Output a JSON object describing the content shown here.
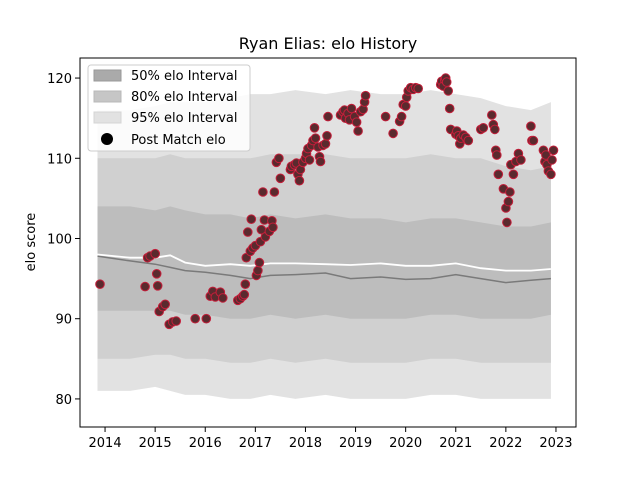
{
  "chart_data": {
    "type": "scatter",
    "title": "Ryan Elias: elo History",
    "xlabel": "",
    "ylabel": "elo score",
    "xlim": [
      2013.5,
      2023.4
    ],
    "ylim": [
      76.5,
      122.5
    ],
    "xticks": [
      2014,
      2015,
      2016,
      2017,
      2018,
      2019,
      2020,
      2021,
      2022,
      2023
    ],
    "yticks": [
      80,
      90,
      100,
      110,
      120
    ],
    "grid": false,
    "legend_position": "top-left",
    "legend": [
      {
        "label": "50% elo Interval",
        "color": "#aaaaaa"
      },
      {
        "label": "80% elo Interval",
        "color": "#c6c6c6"
      },
      {
        "label": "95% elo Interval",
        "color": "#e2e2e2"
      },
      {
        "label": "Post Match elo",
        "color": "#000000"
      }
    ],
    "bands": {
      "x": [
        2013.85,
        2014.5,
        2015.0,
        2015.3,
        2015.6,
        2016.0,
        2016.5,
        2016.9,
        2017.3,
        2017.8,
        2018.4,
        2018.9,
        2019.5,
        2020.0,
        2020.5,
        2021.0,
        2021.5,
        2022.0,
        2022.5,
        2022.9
      ],
      "p95_low": [
        81.0,
        81.0,
        81.5,
        81.0,
        80.5,
        80.5,
        80.0,
        80.0,
        80.5,
        80.0,
        80.5,
        80.0,
        80.0,
        80.0,
        80.5,
        80.5,
        80.0,
        80.0,
        80.0,
        80.0
      ],
      "p80_low": [
        85.0,
        85.0,
        85.5,
        85.5,
        85.0,
        85.0,
        84.5,
        84.5,
        85.0,
        84.5,
        85.0,
        84.5,
        84.5,
        84.5,
        85.0,
        85.0,
        84.5,
        84.5,
        84.5,
        84.5
      ],
      "p50_low": [
        91.0,
        91.0,
        91.0,
        91.0,
        90.5,
        90.5,
        90.0,
        90.0,
        90.5,
        90.0,
        90.5,
        90.0,
        90.0,
        90.0,
        90.5,
        90.5,
        90.0,
        90.0,
        90.0,
        90.5
      ],
      "median": [
        97.8,
        97.2,
        96.8,
        96.4,
        96.0,
        95.8,
        95.4,
        95.0,
        95.4,
        95.5,
        95.7,
        95.0,
        95.2,
        94.9,
        95.0,
        95.5,
        95.0,
        94.5,
        94.8,
        95.0
      ],
      "mean": [
        98.0,
        97.6,
        97.6,
        97.9,
        97.0,
        96.6,
        96.8,
        96.6,
        96.9,
        96.9,
        96.8,
        96.7,
        96.9,
        96.6,
        96.6,
        96.9,
        96.3,
        96.0,
        96.0,
        96.2
      ],
      "p50_high": [
        104.0,
        104.0,
        103.5,
        104.0,
        103.5,
        103.0,
        103.0,
        102.5,
        103.0,
        102.5,
        103.0,
        102.5,
        102.5,
        102.0,
        102.5,
        102.5,
        102.0,
        101.5,
        101.5,
        102.0
      ],
      "p80_high": [
        110.0,
        110.0,
        110.0,
        110.5,
        110.0,
        110.0,
        110.0,
        110.0,
        110.5,
        110.5,
        110.5,
        110.0,
        110.0,
        110.0,
        110.5,
        110.0,
        110.0,
        109.0,
        108.5,
        109.0
      ],
      "p95_high": [
        116.0,
        116.0,
        116.5,
        117.0,
        117.0,
        117.0,
        117.5,
        118.0,
        118.0,
        118.5,
        118.0,
        118.5,
        118.0,
        118.0,
        118.5,
        118.0,
        117.5,
        116.5,
        116.0,
        117.0
      ]
    },
    "points": [
      {
        "x": 2013.9,
        "y": 94.3
      },
      {
        "x": 2014.8,
        "y": 94.0
      },
      {
        "x": 2014.85,
        "y": 97.6
      },
      {
        "x": 2014.9,
        "y": 97.8
      },
      {
        "x": 2015.0,
        "y": 98.1
      },
      {
        "x": 2015.03,
        "y": 95.6
      },
      {
        "x": 2015.05,
        "y": 94.1
      },
      {
        "x": 2015.08,
        "y": 90.9
      },
      {
        "x": 2015.15,
        "y": 91.5
      },
      {
        "x": 2015.2,
        "y": 91.8
      },
      {
        "x": 2015.28,
        "y": 89.3
      },
      {
        "x": 2015.35,
        "y": 89.6
      },
      {
        "x": 2015.42,
        "y": 89.7
      },
      {
        "x": 2015.8,
        "y": 90.0
      },
      {
        "x": 2016.02,
        "y": 90.0
      },
      {
        "x": 2016.1,
        "y": 92.8
      },
      {
        "x": 2016.15,
        "y": 93.4
      },
      {
        "x": 2016.2,
        "y": 92.7
      },
      {
        "x": 2016.3,
        "y": 93.3
      },
      {
        "x": 2016.35,
        "y": 92.6
      },
      {
        "x": 2016.65,
        "y": 92.3
      },
      {
        "x": 2016.7,
        "y": 92.5
      },
      {
        "x": 2016.75,
        "y": 92.8
      },
      {
        "x": 2016.78,
        "y": 93.0
      },
      {
        "x": 2016.8,
        "y": 94.3
      },
      {
        "x": 2016.82,
        "y": 97.6
      },
      {
        "x": 2016.85,
        "y": 100.8
      },
      {
        "x": 2016.9,
        "y": 98.4
      },
      {
        "x": 2016.92,
        "y": 102.4
      },
      {
        "x": 2016.95,
        "y": 98.8
      },
      {
        "x": 2017.0,
        "y": 99.1
      },
      {
        "x": 2017.02,
        "y": 95.4
      },
      {
        "x": 2017.05,
        "y": 96.0
      },
      {
        "x": 2017.08,
        "y": 97.0
      },
      {
        "x": 2017.1,
        "y": 99.6
      },
      {
        "x": 2017.12,
        "y": 101.1
      },
      {
        "x": 2017.15,
        "y": 105.8
      },
      {
        "x": 2017.18,
        "y": 102.3
      },
      {
        "x": 2017.2,
        "y": 100.2
      },
      {
        "x": 2017.28,
        "y": 100.9
      },
      {
        "x": 2017.33,
        "y": 102.2
      },
      {
        "x": 2017.35,
        "y": 101.4
      },
      {
        "x": 2017.38,
        "y": 105.8
      },
      {
        "x": 2017.42,
        "y": 109.5
      },
      {
        "x": 2017.47,
        "y": 110.0
      },
      {
        "x": 2017.5,
        "y": 107.5
      },
      {
        "x": 2017.7,
        "y": 108.6
      },
      {
        "x": 2017.72,
        "y": 109.0
      },
      {
        "x": 2017.78,
        "y": 109.2
      },
      {
        "x": 2017.82,
        "y": 109.4
      },
      {
        "x": 2017.85,
        "y": 108.0
      },
      {
        "x": 2017.88,
        "y": 107.2
      },
      {
        "x": 2017.9,
        "y": 108.6
      },
      {
        "x": 2017.95,
        "y": 109.5
      },
      {
        "x": 2018.0,
        "y": 110.0
      },
      {
        "x": 2018.02,
        "y": 110.6
      },
      {
        "x": 2018.05,
        "y": 111.2
      },
      {
        "x": 2018.08,
        "y": 109.8
      },
      {
        "x": 2018.12,
        "y": 111.6
      },
      {
        "x": 2018.15,
        "y": 112.2
      },
      {
        "x": 2018.18,
        "y": 113.8
      },
      {
        "x": 2018.2,
        "y": 112.5
      },
      {
        "x": 2018.25,
        "y": 111.4
      },
      {
        "x": 2018.28,
        "y": 110.2
      },
      {
        "x": 2018.3,
        "y": 109.6
      },
      {
        "x": 2018.35,
        "y": 111.6
      },
      {
        "x": 2018.4,
        "y": 111.8
      },
      {
        "x": 2018.43,
        "y": 112.8
      },
      {
        "x": 2018.45,
        "y": 115.2
      },
      {
        "x": 2018.7,
        "y": 115.4
      },
      {
        "x": 2018.75,
        "y": 115.8
      },
      {
        "x": 2018.78,
        "y": 116.0
      },
      {
        "x": 2018.8,
        "y": 115.0
      },
      {
        "x": 2018.85,
        "y": 115.6
      },
      {
        "x": 2018.88,
        "y": 114.8
      },
      {
        "x": 2018.92,
        "y": 116.2
      },
      {
        "x": 2018.98,
        "y": 115.2
      },
      {
        "x": 2019.02,
        "y": 114.5
      },
      {
        "x": 2019.05,
        "y": 113.4
      },
      {
        "x": 2019.1,
        "y": 115.8
      },
      {
        "x": 2019.15,
        "y": 116.1
      },
      {
        "x": 2019.18,
        "y": 117.0
      },
      {
        "x": 2019.2,
        "y": 117.8
      },
      {
        "x": 2019.6,
        "y": 115.2
      },
      {
        "x": 2019.75,
        "y": 113.1
      },
      {
        "x": 2019.88,
        "y": 114.6
      },
      {
        "x": 2019.92,
        "y": 115.2
      },
      {
        "x": 2019.95,
        "y": 116.7
      },
      {
        "x": 2020.0,
        "y": 116.5
      },
      {
        "x": 2020.02,
        "y": 117.6
      },
      {
        "x": 2020.05,
        "y": 118.4
      },
      {
        "x": 2020.1,
        "y": 118.8
      },
      {
        "x": 2020.15,
        "y": 118.6
      },
      {
        "x": 2020.2,
        "y": 118.8
      },
      {
        "x": 2020.25,
        "y": 118.7
      },
      {
        "x": 2020.7,
        "y": 119.2
      },
      {
        "x": 2020.72,
        "y": 119.6
      },
      {
        "x": 2020.75,
        "y": 119.0
      },
      {
        "x": 2020.78,
        "y": 119.8
      },
      {
        "x": 2020.8,
        "y": 120.0
      },
      {
        "x": 2020.82,
        "y": 119.5
      },
      {
        "x": 2020.85,
        "y": 118.4
      },
      {
        "x": 2020.88,
        "y": 116.2
      },
      {
        "x": 2020.9,
        "y": 113.6
      },
      {
        "x": 2021.0,
        "y": 113.0
      },
      {
        "x": 2021.02,
        "y": 113.4
      },
      {
        "x": 2021.05,
        "y": 112.8
      },
      {
        "x": 2021.08,
        "y": 111.8
      },
      {
        "x": 2021.1,
        "y": 112.5
      },
      {
        "x": 2021.15,
        "y": 112.9
      },
      {
        "x": 2021.2,
        "y": 112.6
      },
      {
        "x": 2021.25,
        "y": 112.2
      },
      {
        "x": 2021.5,
        "y": 113.6
      },
      {
        "x": 2021.55,
        "y": 113.8
      },
      {
        "x": 2021.72,
        "y": 115.4
      },
      {
        "x": 2021.75,
        "y": 114.2
      },
      {
        "x": 2021.78,
        "y": 113.6
      },
      {
        "x": 2021.8,
        "y": 111.0
      },
      {
        "x": 2021.82,
        "y": 110.4
      },
      {
        "x": 2021.85,
        "y": 108.0
      },
      {
        "x": 2021.95,
        "y": 106.2
      },
      {
        "x": 2022.0,
        "y": 103.8
      },
      {
        "x": 2022.02,
        "y": 102.0
      },
      {
        "x": 2022.05,
        "y": 104.6
      },
      {
        "x": 2022.08,
        "y": 105.8
      },
      {
        "x": 2022.1,
        "y": 109.2
      },
      {
        "x": 2022.15,
        "y": 108.0
      },
      {
        "x": 2022.2,
        "y": 109.6
      },
      {
        "x": 2022.25,
        "y": 110.6
      },
      {
        "x": 2022.3,
        "y": 109.8
      },
      {
        "x": 2022.5,
        "y": 114.0
      },
      {
        "x": 2022.52,
        "y": 112.2
      },
      {
        "x": 2022.55,
        "y": 112.2
      },
      {
        "x": 2022.75,
        "y": 111.0
      },
      {
        "x": 2022.78,
        "y": 109.6
      },
      {
        "x": 2022.8,
        "y": 110.4
      },
      {
        "x": 2022.82,
        "y": 109.2
      },
      {
        "x": 2022.85,
        "y": 108.4
      },
      {
        "x": 2022.9,
        "y": 108.0
      },
      {
        "x": 2022.92,
        "y": 109.8
      },
      {
        "x": 2022.95,
        "y": 111.0
      }
    ]
  }
}
